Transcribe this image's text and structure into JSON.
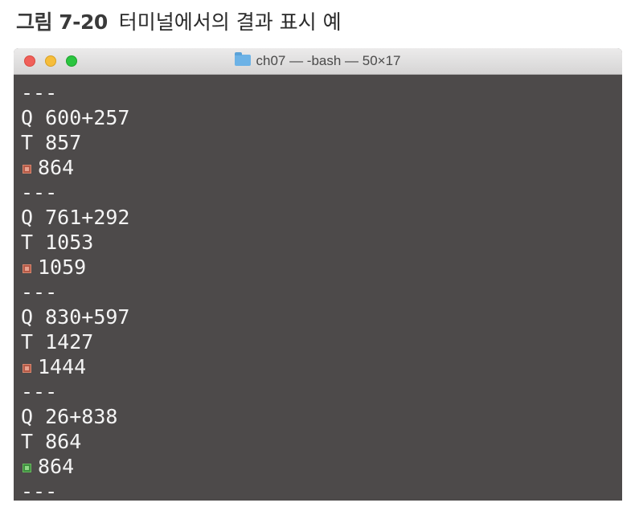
{
  "caption": {
    "figure_number": "그림 7-20",
    "text": "터미널에서의 결과 표시 예"
  },
  "window": {
    "folder_icon": "folder-icon",
    "title": "ch07 — -bash — 50×17"
  },
  "terminal": {
    "lines": [
      {
        "kind": "separator",
        "text": "---"
      },
      {
        "kind": "question",
        "prefix": "Q",
        "text": "600+257"
      },
      {
        "kind": "truth",
        "prefix": "T",
        "text": "857"
      },
      {
        "kind": "guess",
        "mark": "wrong",
        "icon": "wrong-mark-icon",
        "text": "864"
      },
      {
        "kind": "separator",
        "text": "---"
      },
      {
        "kind": "question",
        "prefix": "Q",
        "text": "761+292"
      },
      {
        "kind": "truth",
        "prefix": "T",
        "text": "1053"
      },
      {
        "kind": "guess",
        "mark": "wrong",
        "icon": "wrong-mark-icon",
        "text": "1059"
      },
      {
        "kind": "separator",
        "text": "---"
      },
      {
        "kind": "question",
        "prefix": "Q",
        "text": "830+597"
      },
      {
        "kind": "truth",
        "prefix": "T",
        "text": "1427"
      },
      {
        "kind": "guess",
        "mark": "wrong",
        "icon": "wrong-mark-icon",
        "text": "1444"
      },
      {
        "kind": "separator",
        "text": "---"
      },
      {
        "kind": "question",
        "prefix": "Q",
        "text": "26+838"
      },
      {
        "kind": "truth",
        "prefix": "T",
        "text": "864"
      },
      {
        "kind": "guess",
        "mark": "right",
        "icon": "right-mark-icon",
        "text": "864"
      },
      {
        "kind": "separator",
        "text": "---"
      }
    ]
  }
}
